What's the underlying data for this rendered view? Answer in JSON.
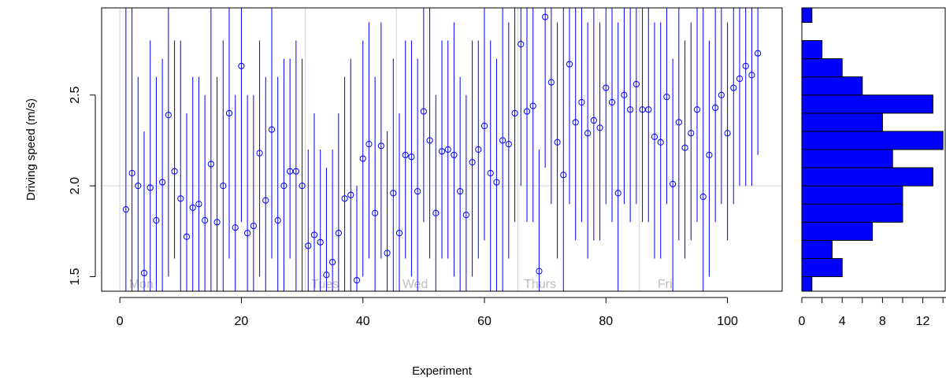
{
  "chart_data": [
    {
      "type": "scatter",
      "subtype": "point-with-error-bars",
      "xlabel": "Experiment",
      "ylabel": "Driving speed (m/s)",
      "xlim": [
        -3,
        109
      ],
      "ylim": [
        1.42,
        2.98
      ],
      "xticks": [
        0,
        20,
        40,
        60,
        80,
        100
      ],
      "yticks": [
        1.5,
        2.0,
        2.5
      ],
      "grid": {
        "horizontal_lines": [
          2.0
        ],
        "vertical_lines": [
          0,
          30.5,
          45.5,
          65.5,
          85.5
        ]
      },
      "day_labels": [
        {
          "x": 1.5,
          "label": "Mon"
        },
        {
          "x": 31.5,
          "label": "Tues"
        },
        {
          "x": 46.5,
          "label": "Wed"
        },
        {
          "x": 66.5,
          "label": "Thurs"
        },
        {
          "x": 88.5,
          "label": "Fri"
        }
      ],
      "colors": {
        "points": "#0000ff",
        "errorbars": "#0000ff",
        "grid": "#d3d3d3",
        "day_labels": "#bebebe"
      },
      "series": [
        {
          "x": [
            1,
            2,
            3,
            4,
            5,
            6,
            7,
            8,
            9,
            10,
            11,
            12,
            13,
            14,
            15,
            16,
            17,
            18,
            19,
            20,
            21,
            22,
            23,
            24,
            25,
            26,
            27,
            28,
            29,
            30,
            31,
            32,
            33,
            34,
            35,
            36,
            37,
            38,
            39,
            40,
            41,
            42,
            43,
            44,
            45,
            46,
            47,
            48,
            49,
            50,
            51,
            52,
            53,
            54,
            55,
            56,
            57,
            58,
            59,
            60,
            61,
            62,
            63,
            64,
            65,
            66,
            67,
            68,
            69,
            70,
            71,
            72,
            73,
            74,
            75,
            76,
            77,
            78,
            79,
            80,
            81,
            82,
            83,
            84,
            85,
            86,
            87,
            88,
            89,
            90,
            91,
            92,
            93,
            94,
            95,
            96,
            97,
            98,
            99,
            100,
            101,
            102,
            103,
            104,
            105
          ],
          "y": [
            1.87,
            2.07,
            2.0,
            1.52,
            1.99,
            1.81,
            2.02,
            2.39,
            2.08,
            1.93,
            1.72,
            1.88,
            1.9,
            1.81,
            2.12,
            1.8,
            2.0,
            2.4,
            1.77,
            2.66,
            1.74,
            1.78,
            2.18,
            1.92,
            2.31,
            1.81,
            2.0,
            2.08,
            2.08,
            2.0,
            1.67,
            1.73,
            1.69,
            1.51,
            1.58,
            1.74,
            1.93,
            1.95,
            1.48,
            2.15,
            2.23,
            1.85,
            2.22,
            1.63,
            1.96,
            1.74,
            2.17,
            2.16,
            1.97,
            2.41,
            2.25,
            1.85,
            2.19,
            2.2,
            2.17,
            1.97,
            1.84,
            2.13,
            2.2,
            2.33,
            2.07,
            2.02,
            2.25,
            2.23,
            2.4,
            2.78,
            2.41,
            2.44,
            1.53,
            2.93,
            2.57,
            2.24,
            2.06,
            2.67,
            2.35,
            2.46,
            2.29,
            2.36,
            2.32,
            2.54,
            2.46,
            1.96,
            2.5,
            2.42,
            2.56,
            2.42,
            2.42,
            2.27,
            2.24,
            2.49,
            2.01,
            2.35,
            2.21,
            2.29,
            2.42,
            1.94,
            2.17,
            2.43,
            2.5,
            2.29,
            2.54,
            2.59,
            2.66,
            2.61,
            2.73
          ],
          "err_low": [
            1.0,
            1.2,
            1.4,
            1.0,
            1.3,
            1.1,
            1.3,
            1.5,
            1.6,
            1.1,
            1.0,
            1.3,
            1.3,
            1.2,
            1.4,
            1.0,
            1.2,
            1.6,
            1.2,
            1.8,
            1.0,
            1.1,
            1.5,
            1.3,
            1.6,
            1.2,
            1.3,
            1.6,
            1.4,
            1.3,
            1.2,
            1.2,
            1.1,
            1.0,
            1.1,
            1.2,
            1.3,
            1.3,
            1.0,
            1.5,
            1.6,
            1.2,
            1.6,
            1.0,
            1.3,
            1.1,
            1.6,
            1.5,
            1.3,
            1.8,
            1.6,
            1.2,
            1.6,
            1.6,
            1.5,
            1.3,
            1.2,
            1.5,
            1.6,
            1.7,
            1.4,
            1.3,
            1.0,
            1.6,
            1.8,
            2.0,
            1.8,
            1.8,
            1.0,
            2.1,
            1.9,
            1.6,
            1.0,
            1.9,
            1.7,
            1.8,
            1.6,
            1.7,
            1.7,
            1.9,
            1.8,
            1.0,
            1.9,
            1.8,
            1.9,
            1.8,
            1.8,
            1.6,
            1.6,
            1.9,
            1.4,
            1.7,
            1.6,
            1.7,
            1.8,
            1.0,
            1.5,
            1.8,
            1.9,
            1.7,
            1.9,
            2.0,
            2.0,
            2.0,
            2.17
          ],
          "err_high": [
            3.0,
            3.0,
            2.6,
            2.3,
            2.8,
            2.6,
            2.7,
            3.0,
            2.8,
            2.8,
            2.4,
            2.6,
            2.6,
            2.5,
            3.0,
            2.6,
            2.8,
            3.0,
            2.5,
            3.0,
            2.5,
            2.5,
            2.8,
            2.6,
            3.0,
            2.6,
            2.7,
            2.7,
            2.8,
            2.7,
            2.2,
            2.4,
            2.2,
            2.1,
            2.2,
            2.4,
            2.6,
            2.7,
            2.0,
            2.8,
            2.9,
            2.6,
            2.9,
            2.3,
            2.7,
            2.4,
            2.8,
            2.8,
            2.7,
            3.0,
            3.0,
            2.5,
            2.8,
            2.8,
            2.9,
            2.6,
            2.5,
            2.8,
            2.8,
            3.0,
            2.8,
            2.7,
            3.0,
            2.9,
            3.0,
            3.0,
            3.0,
            3.0,
            2.2,
            3.0,
            3.0,
            2.9,
            3.0,
            3.0,
            3.0,
            3.0,
            2.9,
            3.0,
            2.9,
            3.0,
            3.0,
            2.9,
            3.0,
            3.0,
            3.0,
            3.0,
            3.0,
            2.9,
            2.9,
            3.0,
            2.7,
            3.0,
            2.8,
            2.9,
            3.0,
            3.0,
            2.8,
            3.0,
            3.0,
            2.9,
            3.0,
            3.0,
            3.0,
            3.0,
            3.0
          ]
        }
      ]
    },
    {
      "type": "bar",
      "subtype": "horizontal-histogram",
      "bin_width": 0.1,
      "bin_starts": [
        1.4,
        1.5,
        1.6,
        1.7,
        1.8,
        1.9,
        2.0,
        2.1,
        2.2,
        2.3,
        2.4,
        2.5,
        2.6,
        2.7,
        2.8,
        2.9
      ],
      "counts": [
        1,
        4,
        3,
        7,
        10,
        10,
        13,
        9,
        14,
        8,
        13,
        6,
        4,
        2,
        0,
        1
      ],
      "xticks": [
        0,
        4,
        8,
        12
      ],
      "xminor_ticks": [
        2,
        6,
        10,
        14
      ],
      "xlim": [
        0,
        14.3
      ],
      "colors": {
        "bars": "#0000ff",
        "bar_border": "#000000"
      }
    }
  ]
}
